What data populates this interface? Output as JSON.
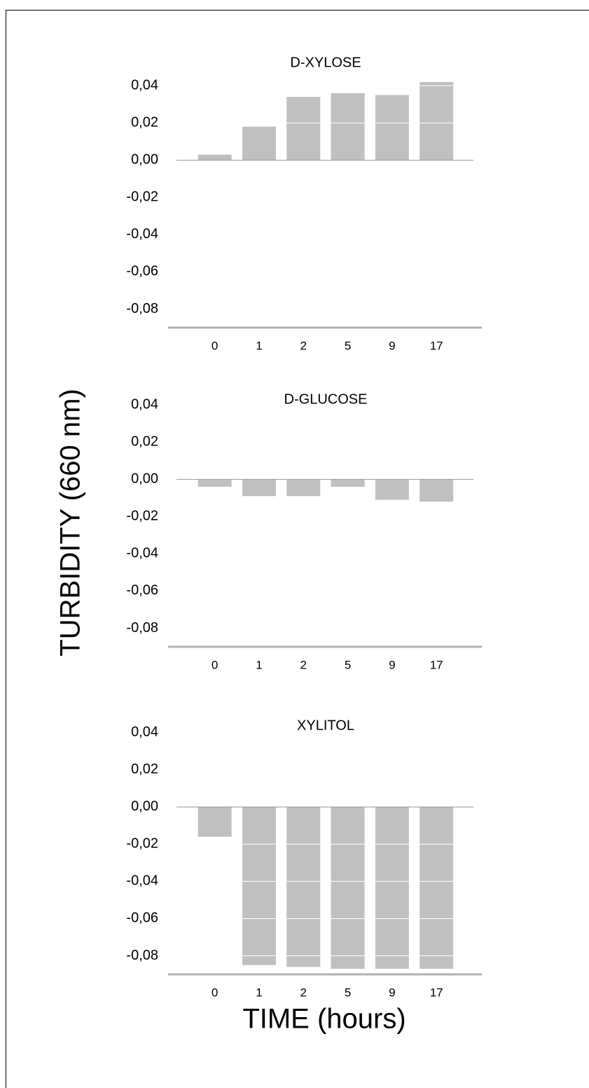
{
  "ylabel": "TURBIDITY (660 nm)",
  "xlabel": "TIME (hours)",
  "chart_data": [
    {
      "type": "bar",
      "title": "D-XYLOSE",
      "categories": [
        "0",
        "1",
        "2",
        "5",
        "9",
        "17"
      ],
      "values": [
        0.003,
        0.018,
        0.034,
        0.036,
        0.035,
        0.042
      ],
      "color": "#c0c0c0",
      "ylim": [
        -0.09,
        0.045
      ],
      "yticks": [
        {
          "value": -0.08,
          "label": "-0,08"
        },
        {
          "value": -0.06,
          "label": "-0,06"
        },
        {
          "value": -0.04,
          "label": "-0,04"
        },
        {
          "value": -0.02,
          "label": "-0,02"
        },
        {
          "value": 0,
          "label": "0,00"
        },
        {
          "value": 0.02,
          "label": "0,02"
        },
        {
          "value": 0.04,
          "label": "0,04"
        }
      ],
      "grid": true
    },
    {
      "type": "bar",
      "title": "D-GLUCOSE",
      "categories": [
        "0",
        "1",
        "2",
        "5",
        "9",
        "17"
      ],
      "values": [
        -0.004,
        -0.009,
        -0.009,
        -0.004,
        -0.011,
        -0.012
      ],
      "color": "#c0c0c0",
      "ylim": [
        -0.09,
        0.045
      ],
      "yticks": [
        {
          "value": -0.08,
          "label": "-0,08"
        },
        {
          "value": -0.06,
          "label": "-0,06"
        },
        {
          "value": -0.04,
          "label": "-0,04"
        },
        {
          "value": -0.02,
          "label": "-0,02"
        },
        {
          "value": 0,
          "label": "0,00"
        },
        {
          "value": 0.02,
          "label": "0,02"
        },
        {
          "value": 0.04,
          "label": "0,04"
        }
      ],
      "grid": true
    },
    {
      "type": "bar",
      "title": "XYLITOL",
      "categories": [
        "0",
        "1",
        "2",
        "5",
        "9",
        "17"
      ],
      "values": [
        -0.016,
        -0.085,
        -0.086,
        -0.087,
        -0.087,
        -0.087
      ],
      "color": "#c0c0c0",
      "ylim": [
        -0.09,
        0.045
      ],
      "yticks": [
        {
          "value": -0.08,
          "label": "-0,08"
        },
        {
          "value": -0.06,
          "label": "-0,06"
        },
        {
          "value": -0.04,
          "label": "-0,04"
        },
        {
          "value": -0.02,
          "label": "-0,02"
        },
        {
          "value": 0,
          "label": "0,00"
        },
        {
          "value": 0.02,
          "label": "0,02"
        },
        {
          "value": 0.04,
          "label": "0,04"
        }
      ],
      "grid": true
    }
  ]
}
